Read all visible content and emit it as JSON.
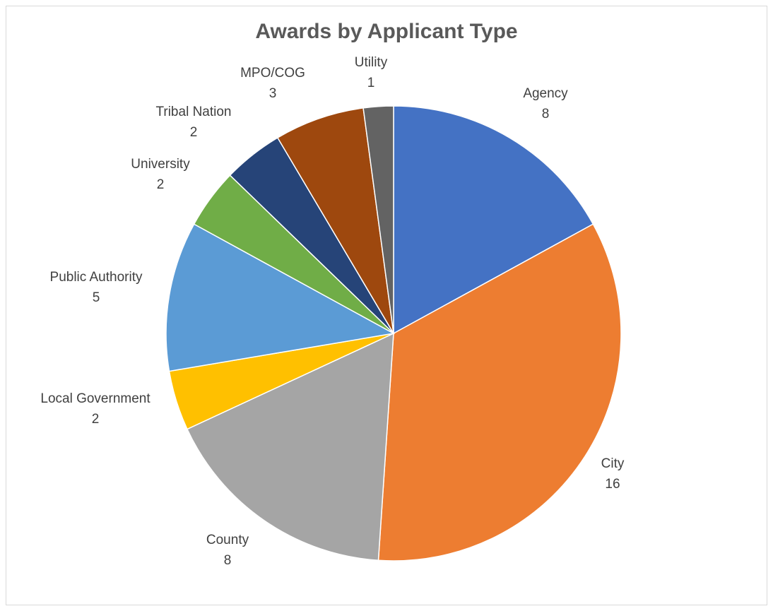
{
  "chart_data": {
    "type": "pie",
    "title": "Awards by Applicant Type",
    "start_angle_deg": 0,
    "direction": "clockwise",
    "slices": [
      {
        "label": "Agency",
        "value": 8,
        "color": "#4472C4"
      },
      {
        "label": "City",
        "value": 16,
        "color": "#ED7D31"
      },
      {
        "label": "County",
        "value": 8,
        "color": "#A5A5A5"
      },
      {
        "label": "Local Government",
        "value": 2,
        "color": "#FFC000"
      },
      {
        "label": "Public Authority",
        "value": 5,
        "color": "#5B9BD5"
      },
      {
        "label": "University",
        "value": 2,
        "color": "#70AD47"
      },
      {
        "label": "Tribal Nation",
        "value": 2,
        "color": "#264478"
      },
      {
        "label": "MPO/COG",
        "value": 3,
        "color": "#9E480E"
      },
      {
        "label": "Utility",
        "value": 1,
        "color": "#636363"
      }
    ]
  }
}
